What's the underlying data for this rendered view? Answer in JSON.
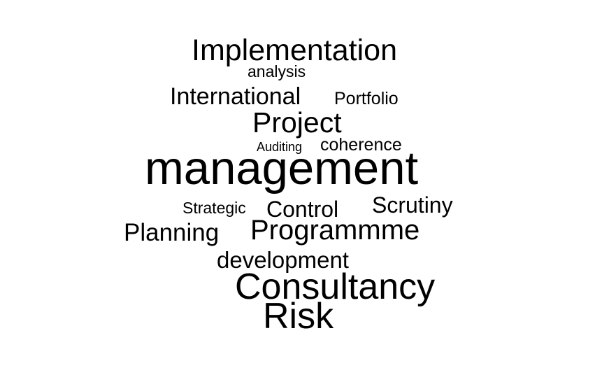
{
  "words": [
    {
      "text": "Implementation"
    },
    {
      "text": "analysis"
    },
    {
      "text": "International"
    },
    {
      "text": "Portfolio"
    },
    {
      "text": "Project"
    },
    {
      "text": "Auditing"
    },
    {
      "text": "coherence"
    },
    {
      "text": "management"
    },
    {
      "text": "Strategic"
    },
    {
      "text": "Control"
    },
    {
      "text": "Scrutiny"
    },
    {
      "text": "Planning"
    },
    {
      "text": "Programmme"
    },
    {
      "text": "development"
    },
    {
      "text": "Consultancy"
    },
    {
      "text": "Risk"
    }
  ],
  "colors": {
    "text": "#000000",
    "background": "#ffffff"
  }
}
